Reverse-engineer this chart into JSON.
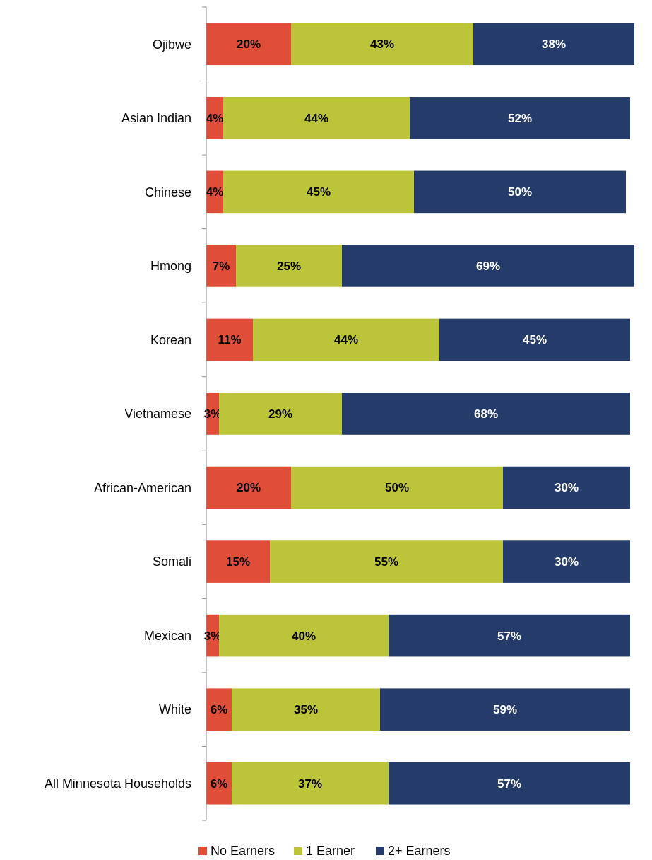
{
  "chart_data": {
    "type": "bar",
    "orientation": "horizontal",
    "stacked": true,
    "categories": [
      "Ojibwe",
      "Asian Indian",
      "Chinese",
      "Hmong",
      "Korean",
      "Vietnamese",
      "African-American",
      "Somali",
      "Mexican",
      "White",
      "All Minnesota Households"
    ],
    "xlim": [
      0,
      101
    ],
    "series": [
      {
        "name": "No Earners",
        "color": "#e04e39",
        "values": [
          20,
          4,
          4,
          7,
          11,
          3,
          20,
          15,
          3,
          6,
          6
        ],
        "value_labels": [
          "20%",
          "4%",
          "4%",
          "7%",
          "11%",
          "3%",
          "20%",
          "15%",
          "3%",
          "6%",
          "6%"
        ]
      },
      {
        "name": "1 Earner",
        "color": "#bcc43a",
        "values": [
          43,
          44,
          45,
          25,
          44,
          29,
          50,
          55,
          40,
          35,
          37
        ],
        "value_labels": [
          "43%",
          "44%",
          "45%",
          "25%",
          "44%",
          "29%",
          "50%",
          "55%",
          "40%",
          "35%",
          "37%"
        ]
      },
      {
        "name": "2+ Earners",
        "color": "#253c6a",
        "values": [
          38,
          52,
          50,
          69,
          45,
          68,
          30,
          30,
          57,
          59,
          57
        ],
        "value_labels": [
          "38%",
          "52%",
          "50%",
          "69%",
          "45%",
          "68%",
          "30%",
          "30%",
          "57%",
          "59%",
          "57%"
        ]
      }
    ],
    "legend": "bottom"
  }
}
